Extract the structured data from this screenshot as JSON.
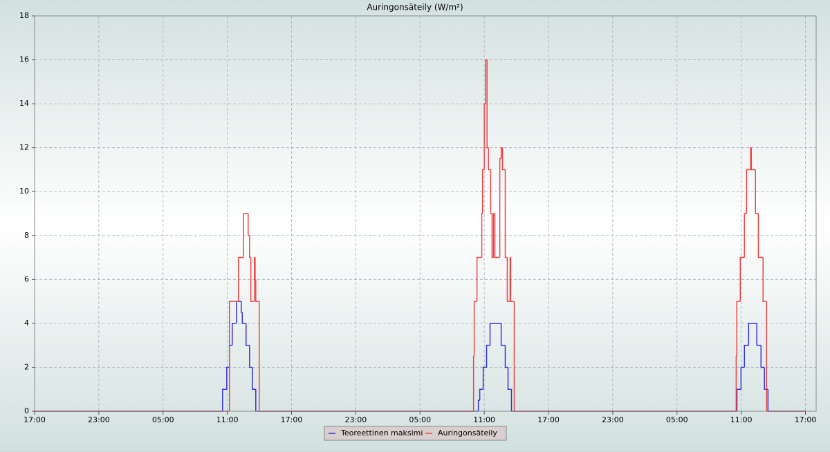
{
  "chart_data": {
    "type": "step",
    "title": "Auringonsäteily (W/m²)",
    "xlim": [
      0,
      73
    ],
    "xticks": [
      {
        "value": 0,
        "label": "17:00"
      },
      {
        "value": 6,
        "label": "23:00"
      },
      {
        "value": 12,
        "label": "05:00"
      },
      {
        "value": 18,
        "label": "11:00"
      },
      {
        "value": 24,
        "label": "17:00"
      },
      {
        "value": 30,
        "label": "23:00"
      },
      {
        "value": 36,
        "label": "05:00"
      },
      {
        "value": 42,
        "label": "11:00"
      },
      {
        "value": 48,
        "label": "17:00"
      },
      {
        "value": 54,
        "label": "23:00"
      },
      {
        "value": 60,
        "label": "05:00"
      },
      {
        "value": 66,
        "label": "11:00"
      },
      {
        "value": 72,
        "label": "17:00"
      }
    ],
    "ylim": [
      0,
      18
    ],
    "yticks": [
      0,
      2,
      4,
      6,
      8,
      10,
      12,
      14,
      16,
      18
    ],
    "grid": true,
    "legend": "bottom",
    "series": [
      {
        "name": "Teoreettinen maksimi",
        "color": "#3333dd",
        "x": [
          0,
          17.56,
          17.95,
          18.2,
          18.46,
          18.85,
          19.3,
          19.4,
          19.75,
          20.08,
          20.34,
          20.66,
          41.45,
          41.58,
          41.9,
          42.22,
          42.54,
          43.58,
          43.96,
          44.22,
          44.54,
          65.6,
          65.98,
          66.3,
          66.69,
          67.46,
          67.85,
          68.17,
          68.5,
          72
        ],
        "values": [
          0,
          1,
          2,
          3,
          4,
          5,
          4.5,
          4,
          3,
          2,
          1,
          0,
          0.5,
          1,
          2,
          3,
          4,
          3,
          2,
          1,
          0,
          1,
          2,
          3,
          4,
          3,
          2,
          1,
          0,
          0
        ]
      },
      {
        "name": "Auringonsäteily",
        "color": "#ee4444",
        "x": [
          0,
          18.2,
          19.04,
          19.5,
          19.95,
          20.08,
          20.2,
          20.53,
          20.6,
          20.66,
          20.98,
          41.0,
          41.06,
          41.32,
          41.77,
          41.84,
          42.0,
          42.13,
          42.26,
          42.39,
          42.6,
          42.73,
          42.86,
          42.99,
          43.45,
          43.58,
          43.7,
          43.96,
          44.15,
          44.41,
          44.47,
          44.8,
          65.53,
          65.59,
          65.91,
          66.3,
          66.5,
          66.88,
          66.95,
          67.33,
          67.6,
          68.04,
          68.37,
          72
        ],
        "values": [
          0,
          5,
          7,
          9,
          8,
          7,
          5,
          7,
          6,
          5,
          0,
          2.5,
          5,
          7,
          9,
          11,
          14,
          16,
          12,
          11,
          9,
          7,
          9,
          7,
          11.5,
          12,
          11,
          7,
          5,
          7,
          5,
          0,
          2.5,
          5,
          7,
          9,
          11,
          12,
          11,
          9,
          7,
          5,
          0,
          0
        ]
      }
    ]
  }
}
